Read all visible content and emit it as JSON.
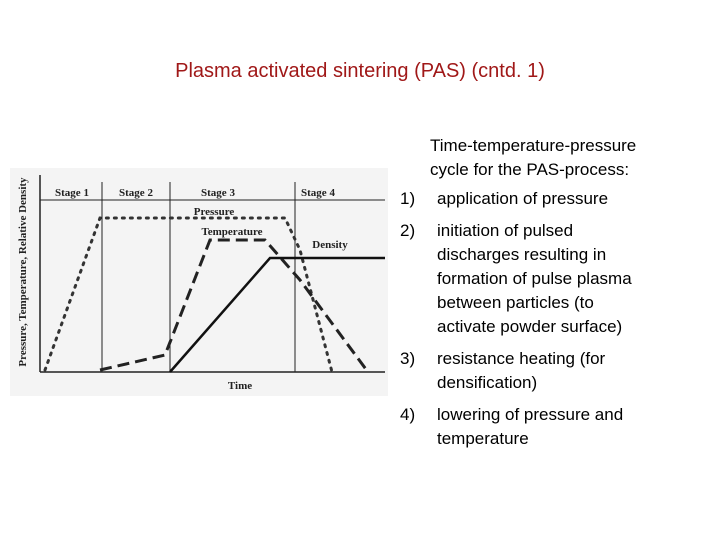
{
  "title": "Plasma activated sintering (PAS) (cntd. 1)",
  "diagram": {
    "stages": [
      "Stage 1",
      "Stage 2",
      "Stage 3",
      "Stage 4"
    ],
    "curves": {
      "pressure": "Pressure",
      "temperature": "Temperature",
      "density": "Density"
    },
    "x_label": "Time",
    "y_label": "Pressure, Temperature, Relative Density"
  },
  "description": [
    "Time-temperature-pressure",
    "cycle for the PAS-process:"
  ],
  "list": [
    {
      "number": "1)",
      "lines": [
        "application of pressure"
      ]
    },
    {
      "number": "2)",
      "lines": [
        "initiation of pulsed",
        "discharges resulting in",
        "formation of pulse plasma",
        "between particles (to",
        "activate powder surface)"
      ]
    },
    {
      "number": "3)",
      "lines": [
        "resistance heating (for",
        "densification)"
      ]
    },
    {
      "number": "4)",
      "lines": [
        "lowering of pressure and",
        "temperature"
      ]
    }
  ]
}
